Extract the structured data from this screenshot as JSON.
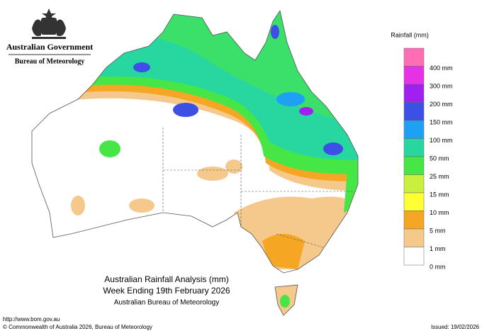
{
  "header": {
    "government": "Australian Government",
    "bureau": "Bureau of Meteorology"
  },
  "legend": {
    "title": "Rainfall (mm)",
    "top_color": "#ff6eb4",
    "items": [
      {
        "label": "400 mm",
        "color": "#e632e6"
      },
      {
        "label": "300 mm",
        "color": "#a020f0"
      },
      {
        "label": "200 mm",
        "color": "#3c50e6"
      },
      {
        "label": "150 mm",
        "color": "#1ea0f5"
      },
      {
        "label": "100 mm",
        "color": "#28d7a0"
      },
      {
        "label": "50 mm",
        "color": "#46e646"
      },
      {
        "label": "25 mm",
        "color": "#c8f03c"
      },
      {
        "label": "15 mm",
        "color": "#ffff32"
      },
      {
        "label": "10 mm",
        "color": "#f5a623"
      },
      {
        "label": "5 mm",
        "color": "#f5c88c"
      },
      {
        "label": "1 mm",
        "color": "#ffffff"
      },
      {
        "label": "0 mm",
        "color": null
      }
    ]
  },
  "titles": {
    "line1": "Australian Rainfall Analysis (mm)",
    "line2": "Week Ending 19th February 2026",
    "line3": "Australian Bureau of Meteorology"
  },
  "footer": {
    "url": "http://www.bom.gov.au",
    "copyright": "© Commonwealth of Australia 2026, Bureau of Meteorology",
    "issued": "Issued: 19/02/2026"
  }
}
